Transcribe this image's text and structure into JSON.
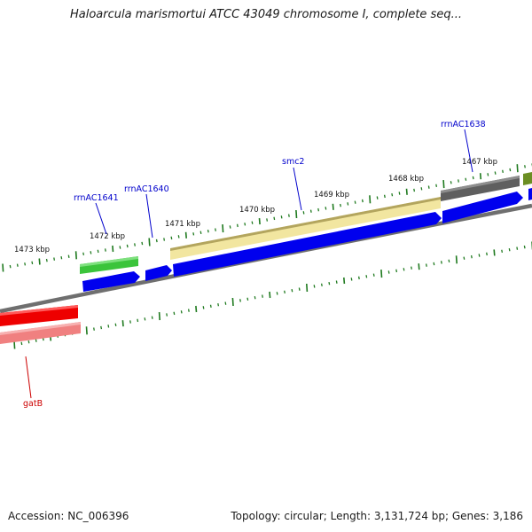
{
  "title": "Haloarcula marismortui ATCC 43049 chromosome I, complete seq...",
  "footer": {
    "accession": "Accession: NC_006396",
    "summary": "Topology: circular; Length: 3,131,724 bp; Genes: 3,186"
  },
  "scale_ticks": [
    "1473 kbp",
    "1472 kbp",
    "1471 kbp",
    "1470 kbp",
    "1469 kbp",
    "1468 kbp",
    "1467 kbp"
  ],
  "gene_labels": [
    {
      "name": "rrnAC1641",
      "color": "#0000cc"
    },
    {
      "name": "rrnAC1640",
      "color": "#0000cc"
    },
    {
      "name": "smc2",
      "color": "#0000cc"
    },
    {
      "name": "rrnAC1638",
      "color": "#0000cc"
    },
    {
      "name": "gatB",
      "color": "#cc0000"
    }
  ],
  "colors": {
    "backbone": "#7f7f7f",
    "forward_cds": "#0000ee",
    "reverse_cds": "#ee0000",
    "tick": "#1f7a1f",
    "feature_green": "#3bc43b",
    "feature_yellow": "#f2e6a0",
    "feature_gray": "#5f5f5f",
    "feature_olive": "#6b8e23",
    "feature_pink": "#f08080"
  }
}
